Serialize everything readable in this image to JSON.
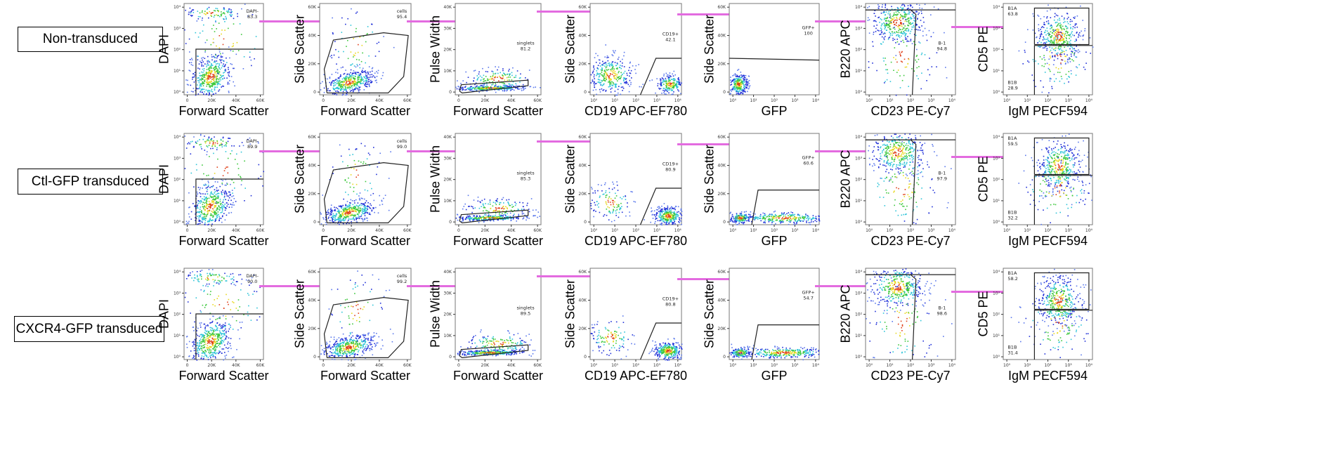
{
  "chart_data": {
    "type": "scatter",
    "arrow_color": "#e36be0",
    "columns": [
      {
        "xlabel": "Forward Scatter",
        "ylabel": "DAPI",
        "xticks": [
          "0",
          "20K",
          "40K",
          "60K"
        ],
        "yticks": [
          "10⁰",
          "10¹",
          "10²",
          "10³",
          "10⁴"
        ]
      },
      {
        "xlabel": "Forward Scatter",
        "ylabel": "Side Scatter",
        "xticks": [
          "0",
          "20K",
          "40K",
          "60K"
        ],
        "yticks": [
          "0",
          "20K",
          "40K",
          "60K"
        ]
      },
      {
        "xlabel": "Forward Scatter",
        "ylabel": "Pulse Width",
        "xticks": [
          "0",
          "20K",
          "40K",
          "60K"
        ],
        "yticks": [
          "0",
          "10K",
          "20K",
          "30K",
          "40K"
        ]
      },
      {
        "xlabel": "CD19 APC-EF780",
        "ylabel": "Side Scatter",
        "xticks": [
          "10⁰",
          "10¹",
          "10²",
          "10³",
          "10⁴"
        ],
        "yticks": [
          "0",
          "20K",
          "40K",
          "60K"
        ]
      },
      {
        "xlabel": "GFP",
        "ylabel": "Side Scatter",
        "xticks": [
          "10⁰",
          "10¹",
          "10²",
          "10³",
          "10⁴"
        ],
        "yticks": [
          "0",
          "20K",
          "40K",
          "60K"
        ]
      },
      {
        "xlabel": "CD23 PE-Cy7",
        "ylabel": "B220 APC",
        "xticks": [
          "10⁰",
          "10¹",
          "10²",
          "10³",
          "10⁴"
        ],
        "yticks": [
          "10⁰",
          "10¹",
          "10²",
          "10³",
          "10⁴"
        ]
      },
      {
        "xlabel": "IgM PECF594",
        "ylabel": "CD5 PE",
        "xticks": [
          "10⁰",
          "10¹",
          "10²",
          "10³",
          "10⁴"
        ],
        "yticks": [
          "10⁰",
          "10¹",
          "10²",
          "10³",
          "10⁴"
        ]
      }
    ],
    "rows": [
      {
        "label": "Non-transduced",
        "gates": [
          {
            "name": "DAPI-",
            "value": "83.3"
          },
          {
            "name": "cells",
            "value": "95.4"
          },
          {
            "name": "singlets",
            "value": "81.2"
          },
          {
            "name": "CD19+",
            "value": "42.1"
          },
          {
            "name": "GFP+",
            "value": "100"
          },
          {
            "name": "B-1",
            "value": "94.8"
          },
          {
            "name": "B1A",
            "value": "63.8"
          },
          {
            "name": "B1B",
            "value": "28.9"
          }
        ]
      },
      {
        "label": "Ctl-GFP transduced",
        "gates": [
          {
            "name": "DAPI-",
            "value": "89.9"
          },
          {
            "name": "cells",
            "value": "99.0"
          },
          {
            "name": "singlets",
            "value": "85.3"
          },
          {
            "name": "CD19+",
            "value": "80.9"
          },
          {
            "name": "GFP+",
            "value": "60.6"
          },
          {
            "name": "B-1",
            "value": "97.9"
          },
          {
            "name": "B1A",
            "value": "59.5"
          },
          {
            "name": "B1B",
            "value": "32.2"
          }
        ]
      },
      {
        "label": "CXCR4-GFP transduced",
        "gates": [
          {
            "name": "DAPI-",
            "value": "90.0"
          },
          {
            "name": "cells",
            "value": "99.2"
          },
          {
            "name": "singlets",
            "value": "89.5"
          },
          {
            "name": "CD19+",
            "value": "80.8"
          },
          {
            "name": "GFP+",
            "value": "54.7"
          },
          {
            "name": "B-1",
            "value": "98.6"
          },
          {
            "name": "B1A",
            "value": "58.2"
          },
          {
            "name": "B1B",
            "value": "31.4"
          }
        ]
      }
    ]
  }
}
